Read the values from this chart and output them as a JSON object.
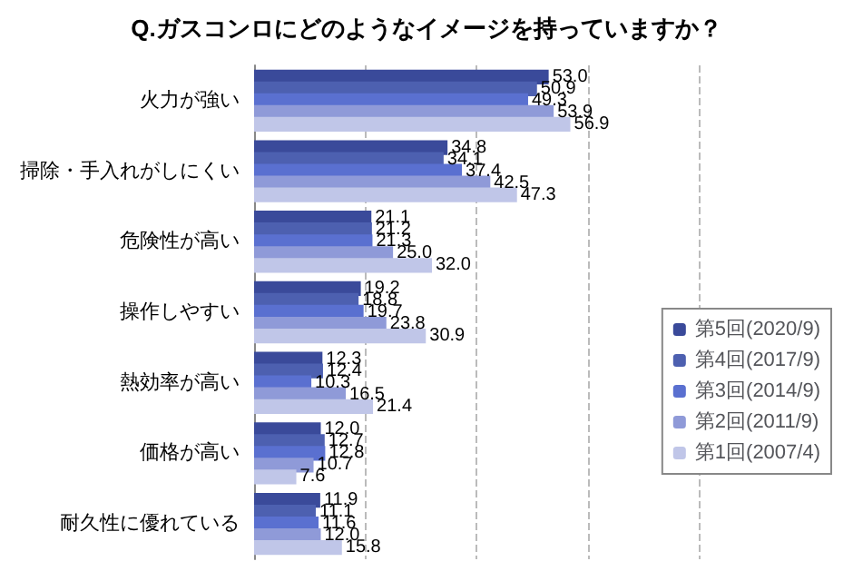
{
  "chart_data": {
    "type": "bar",
    "orientation": "horizontal",
    "title": "Q.ガスコンロにどのようなイメージを持っていますか？",
    "categories": [
      "火力が強い",
      "掃除・手入れがしにくい",
      "危険性が高い",
      "操作しやすい",
      "熱効率が高い",
      "価格が高い",
      "耐久性に優れている"
    ],
    "series": [
      {
        "name": "第5回(2020/9)",
        "color": "#3a4a9a",
        "values": [
          53.0,
          34.8,
          21.1,
          19.2,
          12.3,
          12.0,
          11.9
        ],
        "value_labels": [
          "53.0",
          "34.8",
          "21.1",
          "19.2",
          "12.3",
          "12.0",
          "11.9"
        ]
      },
      {
        "name": "第4回(2017/9)",
        "color": "#4d60b0",
        "values": [
          50.9,
          34.1,
          21.2,
          18.8,
          12.4,
          12.7,
          11.1
        ],
        "value_labels": [
          "50.9",
          "34.1",
          "21.2",
          "18.8",
          "12.4",
          "12.7",
          "11.1"
        ]
      },
      {
        "name": "第3回(2014/9)",
        "color": "#5a70d0",
        "values": [
          49.3,
          37.4,
          21.3,
          19.7,
          10.3,
          12.8,
          11.6
        ],
        "value_labels": [
          "49.3",
          "37.4",
          "21.3",
          "19.7",
          "10.3",
          "12.8",
          "11.6"
        ]
      },
      {
        "name": "第2回(2011/9)",
        "color": "#8f9ad8",
        "values": [
          53.9,
          42.5,
          25.0,
          23.8,
          16.5,
          10.7,
          12.0
        ],
        "value_labels": [
          "53.9",
          "42.5",
          "25.0",
          "23.8",
          "16.5",
          "10.7",
          "12.0"
        ]
      },
      {
        "name": "第1回(2007/4)",
        "color": "#c0c6e8",
        "values": [
          56.9,
          47.3,
          32.0,
          30.9,
          21.4,
          7.6,
          15.8
        ],
        "value_labels": [
          "56.9",
          "47.3",
          "32.0",
          "30.9",
          "21.4",
          "7.6",
          "15.8"
        ]
      }
    ],
    "xlim": [
      0,
      80
    ],
    "xticks": [
      {
        "value": 0,
        "label": null
      },
      {
        "value": 20,
        "label": null
      },
      {
        "value": 40,
        "label": null
      },
      {
        "value": 60,
        "label": null
      },
      {
        "value": 80,
        "label": null
      }
    ],
    "tick_labels": "y",
    "grid": "x",
    "legend": "right"
  }
}
